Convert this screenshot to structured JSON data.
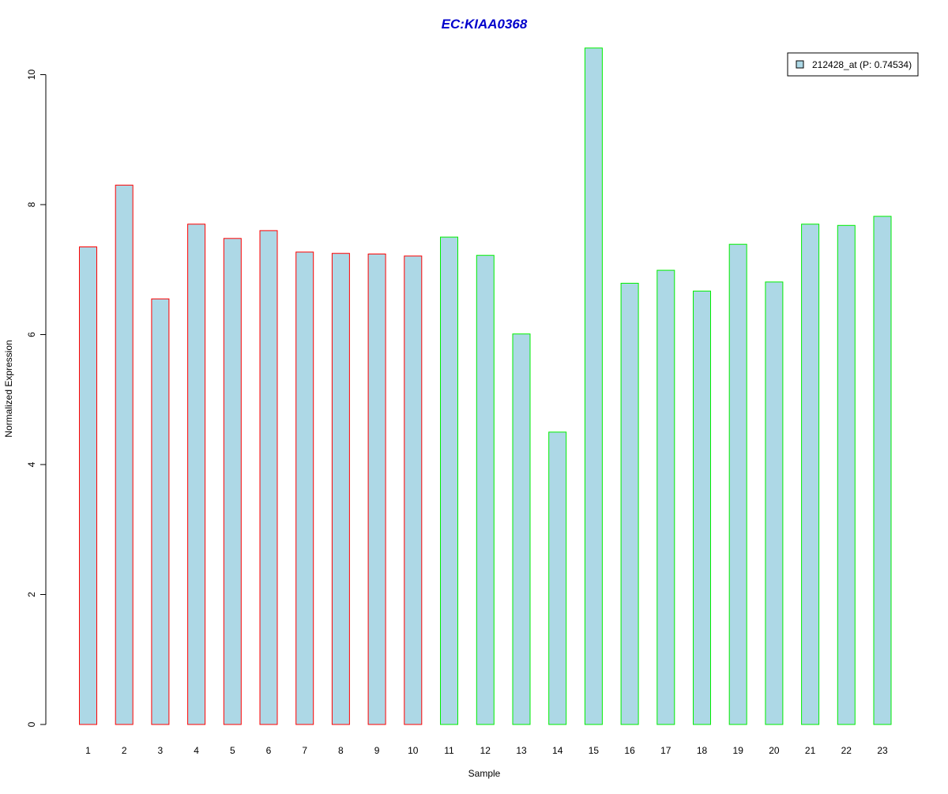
{
  "chart_data": {
    "type": "bar",
    "title": "EC:KIAA0368",
    "xlabel": "Sample",
    "ylabel": "Normalized Expression",
    "ylim": [
      0,
      10.4
    ],
    "yticks": [
      0,
      2,
      4,
      6,
      8,
      10
    ],
    "yticks_label": [
      "0",
      "2",
      "4",
      "6",
      "8",
      "10"
    ],
    "grid": false,
    "legend_position": "top-right",
    "categories": [
      "1",
      "2",
      "3",
      "4",
      "5",
      "6",
      "7",
      "8",
      "9",
      "10",
      "11",
      "12",
      "13",
      "14",
      "15",
      "16",
      "17",
      "18",
      "19",
      "20",
      "21",
      "22",
      "23"
    ],
    "series": [
      {
        "name": "212428_at (P: 0.74534)",
        "values": [
          7.35,
          8.3,
          6.55,
          7.7,
          7.48,
          7.6,
          7.27,
          7.25,
          7.24,
          7.21,
          7.5,
          7.22,
          6.01,
          4.5,
          10.41,
          6.79,
          6.99,
          6.67,
          7.39,
          6.81,
          7.7,
          7.68,
          7.82
        ],
        "fill": "#add8e6"
      }
    ],
    "group_colors": [
      "#ff0000",
      "#ff0000",
      "#ff0000",
      "#ff0000",
      "#ff0000",
      "#ff0000",
      "#ff0000",
      "#ff0000",
      "#ff0000",
      "#ff0000",
      "#00ee00",
      "#00ee00",
      "#00ee00",
      "#00ee00",
      "#00ee00",
      "#00ee00",
      "#00ee00",
      "#00ee00",
      "#00ee00",
      "#00ee00",
      "#00ee00",
      "#00ee00",
      "#00ee00"
    ],
    "title_color": "#0000cc",
    "legend_swatch_color": "#add8e6"
  }
}
